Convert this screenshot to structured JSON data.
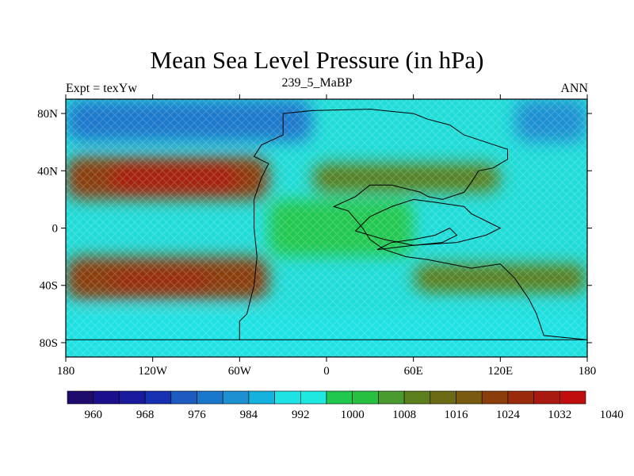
{
  "header": {
    "title": "Mean Sea Level Pressure (in hPa)",
    "left": "Expt = texYw",
    "center": "239_5_MaBP",
    "right": "ANN"
  },
  "axes": {
    "x_ticks": [
      {
        "value": -180,
        "label": "180"
      },
      {
        "value": -120,
        "label": "120W"
      },
      {
        "value": -60,
        "label": "60W"
      },
      {
        "value": 0,
        "label": "0"
      },
      {
        "value": 60,
        "label": "60E"
      },
      {
        "value": 120,
        "label": "120E"
      },
      {
        "value": 180,
        "label": "180"
      }
    ],
    "y_ticks": [
      {
        "value": 80,
        "label": "80N"
      },
      {
        "value": 40,
        "label": "40N"
      },
      {
        "value": 0,
        "label": "0"
      },
      {
        "value": -40,
        "label": "40S"
      },
      {
        "value": -80,
        "label": "80S"
      }
    ],
    "xlim": [
      -180,
      180
    ],
    "ylim": [
      -90,
      90
    ]
  },
  "colorbar": {
    "colors": [
      "#1f0a6e",
      "#1b0f8c",
      "#1a1a9e",
      "#1530b0",
      "#1d5bc0",
      "#1a78cc",
      "#1d90d2",
      "#14b2dc",
      "#1ee2e4",
      "#1fe8e0",
      "#20c850",
      "#28c040",
      "#4a9a30",
      "#5c7e1c",
      "#6c6a14",
      "#7a5a10",
      "#8a3e0c",
      "#9a2a0c",
      "#a81a10",
      "#c00e0e"
    ],
    "labels": [
      {
        "after_index": 1,
        "text": "960"
      },
      {
        "after_index": 3,
        "text": "968"
      },
      {
        "after_index": 5,
        "text": "976"
      },
      {
        "after_index": 7,
        "text": "984"
      },
      {
        "after_index": 9,
        "text": "992"
      },
      {
        "after_index": 11,
        "text": "1000"
      },
      {
        "after_index": 13,
        "text": "1008"
      },
      {
        "after_index": 15,
        "text": "1016"
      },
      {
        "after_index": 17,
        "text": "1024"
      },
      {
        "after_index": 19,
        "text": "1032"
      },
      {
        "after_index": 21,
        "text": "1040"
      }
    ]
  },
  "map_colors": {
    "background": "#20dcd8",
    "low_deep": "#1a60c0",
    "low": "#1a90d0",
    "mid_low": "#18b4dc",
    "mid_high": "#24c848",
    "high": "#6c6a14",
    "high_core": "#7a5010",
    "coastline": "#000000"
  },
  "chart_data": {
    "type": "heatmap",
    "title": "Mean Sea Level Pressure (in hPa)",
    "xlabel": "",
    "ylabel": "",
    "xlim": [
      -180,
      180
    ],
    "ylim": [
      -90,
      90
    ],
    "units": "hPa",
    "regions": [
      {
        "lon": [
          -180,
          -10
        ],
        "lat": [
          60,
          90
        ],
        "value": 978
      },
      {
        "lon": [
          130,
          180
        ],
        "lat": [
          60,
          90
        ],
        "value": 982
      },
      {
        "lon": [
          -180,
          -40
        ],
        "lat": [
          20,
          50
        ],
        "value": 1020
      },
      {
        "lon": [
          -150,
          -60
        ],
        "lat": [
          25,
          45
        ],
        "value": 1028
      },
      {
        "lon": [
          -10,
          120
        ],
        "lat": [
          25,
          45
        ],
        "value": 1008
      },
      {
        "lon": [
          -180,
          -40
        ],
        "lat": [
          -50,
          -20
        ],
        "value": 1020
      },
      {
        "lon": [
          -150,
          -80
        ],
        "lat": [
          -45,
          -30
        ],
        "value": 1026
      },
      {
        "lon": [
          60,
          180
        ],
        "lat": [
          -45,
          -25
        ],
        "value": 1010
      },
      {
        "lon": [
          -180,
          180
        ],
        "lat": [
          -90,
          -60
        ],
        "value": 988
      },
      {
        "lon": [
          -40,
          60
        ],
        "lat": [
          -20,
          20
        ],
        "value": 996
      }
    ]
  }
}
